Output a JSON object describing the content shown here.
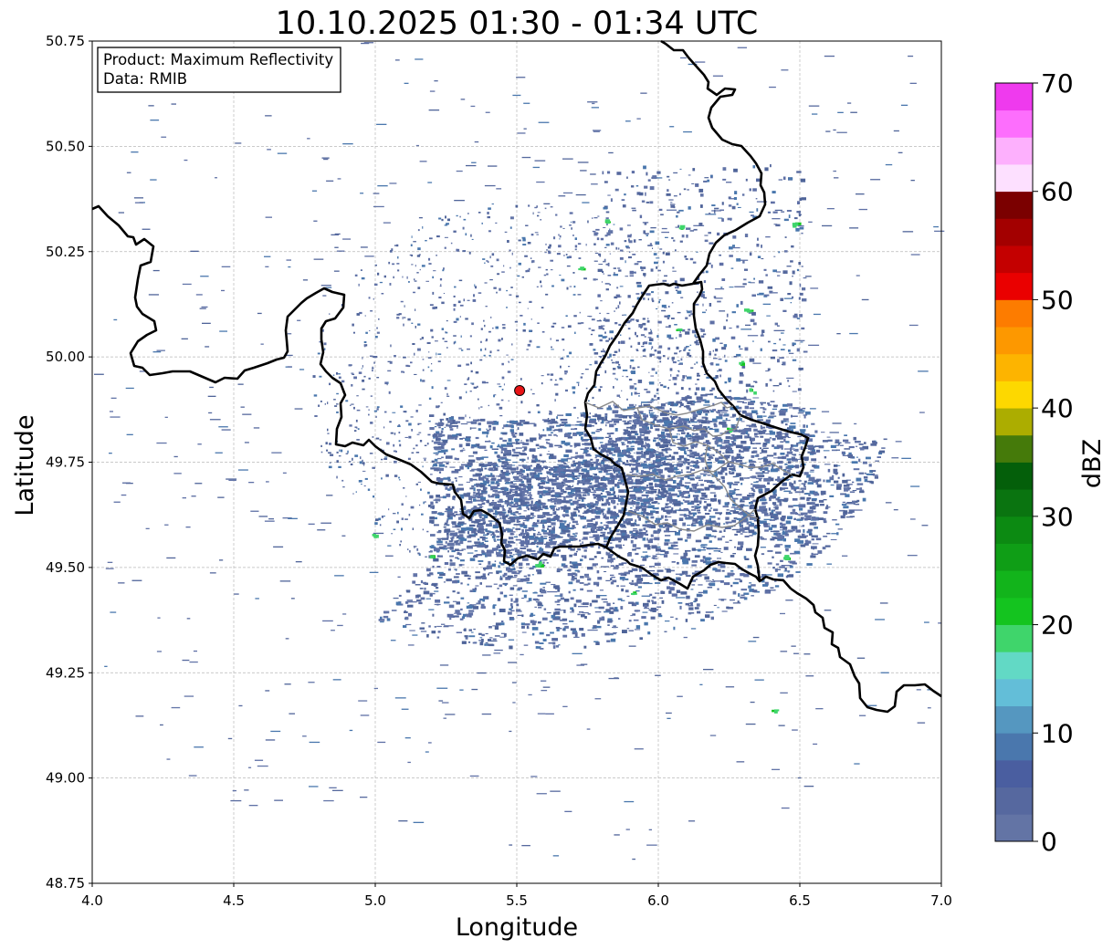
{
  "title": "10.10.2025 01:30 - 01:34 UTC",
  "info_box": {
    "line1": "Product: Maximum Reflectivity",
    "line2": "Data: RMIB"
  },
  "axes": {
    "xlabel": "Longitude",
    "ylabel": "Latitude",
    "xlim": [
      4.0,
      7.0
    ],
    "ylim": [
      48.75,
      50.75
    ],
    "xticks": [
      "4.0",
      "4.5",
      "5.0",
      "5.5",
      "6.0",
      "6.5",
      "7.0"
    ],
    "yticks": [
      "50.75",
      "50.50",
      "50.25",
      "50.00",
      "49.75",
      "49.50",
      "49.25",
      "49.00",
      "48.75"
    ],
    "grid": true
  },
  "radar_site": {
    "lon": 5.51,
    "lat": 49.92
  },
  "colorbar": {
    "label": "dBZ",
    "min": 0,
    "max": 70,
    "ticks": [
      "0",
      "10",
      "20",
      "30",
      "40",
      "50",
      "60",
      "70"
    ],
    "colors": [
      "#6374a5",
      "#56689f",
      "#4a5ea0",
      "#4a77ad",
      "#5597c0",
      "#63bed8",
      "#62d9c5",
      "#3fd56b",
      "#14c41f",
      "#12b41b",
      "#0f9e16",
      "#0c8a12",
      "#0a7410",
      "#045f0a",
      "#457a0a",
      "#acad00",
      "#fdd800",
      "#fdb400",
      "#fd9800",
      "#fd7c00",
      "#ea0000",
      "#c40000",
      "#a30000",
      "#7b0000",
      "#fde0ff",
      "#fdb0fd",
      "#fd6efd",
      "#ef3aee"
    ]
  },
  "colors": {
    "border": "#000000",
    "subborder": "#8a8a8a",
    "radar_site": "#e81416",
    "echo_main": "#56699e"
  }
}
